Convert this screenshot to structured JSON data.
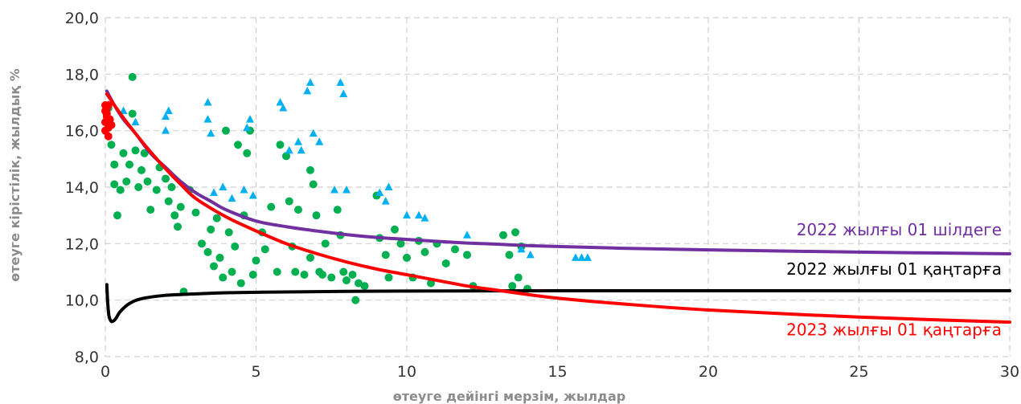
{
  "chart_data": {
    "type": "scatter",
    "title": "",
    "xlabel": "өтеуге дейінгі мерзім, жылдар",
    "ylabel": "өтеуге кірістілік, жылдық %",
    "xlim": [
      0,
      30
    ],
    "ylim": [
      8,
      20
    ],
    "x_ticks": [
      0,
      5,
      10,
      15,
      20,
      25,
      30
    ],
    "y_ticks": [
      "8,0",
      "10,0",
      "12,0",
      "14,0",
      "16,0",
      "18,0",
      "20,0"
    ],
    "grid": true,
    "curves": [
      {
        "name": "2022 жылғы 01 шілдеге",
        "color": "#7030a0",
        "label_y": 12.3,
        "points": [
          [
            0.05,
            17.4
          ],
          [
            0.3,
            16.9
          ],
          [
            0.6,
            16.4
          ],
          [
            1,
            15.9
          ],
          [
            1.5,
            15.2
          ],
          [
            2,
            14.7
          ],
          [
            2.5,
            14.2
          ],
          [
            3,
            13.8
          ],
          [
            3.5,
            13.5
          ],
          [
            4,
            13.2
          ],
          [
            5,
            12.8
          ],
          [
            6,
            12.6
          ],
          [
            7,
            12.45
          ],
          [
            8,
            12.32
          ],
          [
            9,
            12.22
          ],
          [
            10,
            12.15
          ],
          [
            11,
            12.08
          ],
          [
            12,
            12.02
          ],
          [
            13,
            11.98
          ],
          [
            14,
            11.93
          ],
          [
            15,
            11.9
          ],
          [
            17,
            11.84
          ],
          [
            20,
            11.78
          ],
          [
            25,
            11.7
          ],
          [
            30,
            11.64
          ]
        ]
      },
      {
        "name": "2022 жылғы 01 қаңтарға",
        "color": "#000000",
        "label_y": 10.9,
        "points": [
          [
            0.05,
            10.55
          ],
          [
            0.08,
            9.9
          ],
          [
            0.12,
            9.45
          ],
          [
            0.18,
            9.27
          ],
          [
            0.25,
            9.25
          ],
          [
            0.35,
            9.35
          ],
          [
            0.5,
            9.6
          ],
          [
            0.8,
            9.88
          ],
          [
            1.2,
            10.05
          ],
          [
            2,
            10.17
          ],
          [
            3,
            10.22
          ],
          [
            4,
            10.26
          ],
          [
            6,
            10.29
          ],
          [
            8,
            10.31
          ],
          [
            10,
            10.32
          ],
          [
            15,
            10.33
          ],
          [
            20,
            10.33
          ],
          [
            30,
            10.33
          ]
        ]
      },
      {
        "name": "2023 жылғы 01 қаңтарға",
        "color": "#ff0000",
        "label_y": 8.75,
        "points": [
          [
            0.05,
            17.3
          ],
          [
            0.5,
            16.6
          ],
          [
            1,
            15.9
          ],
          [
            1.5,
            15.25
          ],
          [
            2,
            14.65
          ],
          [
            2.5,
            14.1
          ],
          [
            3,
            13.6
          ],
          [
            4,
            12.95
          ],
          [
            5,
            12.45
          ],
          [
            6,
            12.0
          ],
          [
            7,
            11.65
          ],
          [
            8,
            11.35
          ],
          [
            9,
            11.1
          ],
          [
            10,
            10.9
          ],
          [
            11,
            10.7
          ],
          [
            12,
            10.5
          ],
          [
            13,
            10.35
          ],
          [
            14,
            10.2
          ],
          [
            15,
            10.07
          ],
          [
            17,
            9.88
          ],
          [
            20,
            9.65
          ],
          [
            25,
            9.4
          ],
          [
            30,
            9.22
          ]
        ]
      }
    ],
    "series": [
      {
        "name": "",
        "marker": "circle",
        "color": "#00b050",
        "points": [
          [
            0.1,
            16.8
          ],
          [
            0.2,
            15.5
          ],
          [
            0.3,
            14.8
          ],
          [
            0.3,
            14.1
          ],
          [
            0.4,
            13.0
          ],
          [
            0.5,
            13.9
          ],
          [
            0.6,
            15.2
          ],
          [
            0.7,
            14.2
          ],
          [
            0.8,
            14.8
          ],
          [
            0.9,
            17.9
          ],
          [
            0.9,
            16.6
          ],
          [
            1.0,
            15.3
          ],
          [
            1.1,
            14.0
          ],
          [
            1.2,
            14.6
          ],
          [
            1.3,
            15.2
          ],
          [
            1.4,
            14.2
          ],
          [
            1.5,
            13.2
          ],
          [
            1.7,
            13.9
          ],
          [
            1.8,
            14.7
          ],
          [
            2.0,
            14.3
          ],
          [
            2.1,
            13.5
          ],
          [
            2.2,
            14.0
          ],
          [
            2.3,
            13.0
          ],
          [
            2.4,
            12.6
          ],
          [
            2.5,
            13.3
          ],
          [
            2.6,
            10.3
          ],
          [
            2.8,
            13.9
          ],
          [
            3.0,
            13.1
          ],
          [
            3.2,
            12.0
          ],
          [
            3.4,
            11.7
          ],
          [
            3.5,
            12.5
          ],
          [
            3.6,
            11.2
          ],
          [
            3.7,
            12.9
          ],
          [
            3.8,
            11.5
          ],
          [
            3.9,
            10.8
          ],
          [
            4.0,
            16.0
          ],
          [
            4.1,
            12.4
          ],
          [
            4.2,
            11.0
          ],
          [
            4.3,
            11.9
          ],
          [
            4.4,
            15.5
          ],
          [
            4.5,
            10.6
          ],
          [
            4.6,
            13.0
          ],
          [
            4.7,
            15.2
          ],
          [
            4.8,
            16.0
          ],
          [
            4.9,
            10.9
          ],
          [
            5.0,
            11.4
          ],
          [
            5.2,
            12.4
          ],
          [
            5.3,
            11.8
          ],
          [
            5.5,
            13.3
          ],
          [
            5.7,
            11.0
          ],
          [
            5.8,
            15.5
          ],
          [
            6.0,
            15.1
          ],
          [
            6.1,
            13.5
          ],
          [
            6.2,
            11.9
          ],
          [
            6.3,
            11.0
          ],
          [
            6.4,
            13.2
          ],
          [
            6.6,
            10.9
          ],
          [
            6.8,
            14.6
          ],
          [
            6.8,
            11.5
          ],
          [
            6.9,
            14.1
          ],
          [
            7.0,
            13.0
          ],
          [
            7.1,
            11.0
          ],
          [
            7.2,
            10.9
          ],
          [
            7.3,
            12.0
          ],
          [
            7.5,
            10.8
          ],
          [
            7.7,
            13.2
          ],
          [
            7.8,
            12.3
          ],
          [
            7.9,
            11.0
          ],
          [
            8.0,
            10.7
          ],
          [
            8.2,
            10.9
          ],
          [
            8.3,
            10.0
          ],
          [
            8.4,
            10.6
          ],
          [
            8.6,
            10.5
          ],
          [
            9.0,
            13.7
          ],
          [
            9.1,
            12.2
          ],
          [
            9.3,
            11.6
          ],
          [
            9.4,
            10.8
          ],
          [
            9.6,
            12.5
          ],
          [
            9.8,
            12.0
          ],
          [
            10.0,
            11.5
          ],
          [
            10.2,
            10.8
          ],
          [
            10.4,
            12.1
          ],
          [
            10.6,
            11.7
          ],
          [
            10.8,
            10.6
          ],
          [
            11.0,
            12.0
          ],
          [
            11.3,
            11.3
          ],
          [
            11.6,
            11.8
          ],
          [
            12.0,
            11.6
          ],
          [
            12.2,
            10.5
          ],
          [
            13.2,
            12.3
          ],
          [
            13.4,
            11.6
          ],
          [
            13.5,
            10.5
          ],
          [
            13.6,
            12.4
          ],
          [
            13.7,
            10.8
          ],
          [
            13.8,
            11.9
          ],
          [
            14.0,
            10.4
          ]
        ]
      },
      {
        "name": "",
        "marker": "triangle",
        "color": "#00b0f0",
        "points": [
          [
            0.6,
            16.7
          ],
          [
            1.0,
            16.3
          ],
          [
            2.0,
            16.5
          ],
          [
            2.0,
            16.0
          ],
          [
            2.1,
            16.7
          ],
          [
            3.4,
            17.0
          ],
          [
            3.4,
            16.4
          ],
          [
            3.5,
            15.9
          ],
          [
            3.6,
            13.8
          ],
          [
            3.9,
            14.0
          ],
          [
            4.2,
            13.6
          ],
          [
            4.6,
            13.9
          ],
          [
            4.7,
            16.1
          ],
          [
            4.8,
            16.4
          ],
          [
            4.9,
            13.7
          ],
          [
            5.8,
            17.0
          ],
          [
            5.9,
            16.8
          ],
          [
            6.1,
            15.3
          ],
          [
            6.4,
            15.6
          ],
          [
            6.5,
            15.3
          ],
          [
            6.7,
            17.4
          ],
          [
            6.8,
            17.7
          ],
          [
            6.9,
            15.9
          ],
          [
            7.1,
            15.6
          ],
          [
            7.6,
            13.9
          ],
          [
            7.8,
            17.7
          ],
          [
            7.9,
            17.3
          ],
          [
            8.0,
            13.9
          ],
          [
            9.1,
            13.8
          ],
          [
            9.3,
            13.5
          ],
          [
            9.4,
            14.0
          ],
          [
            10.0,
            13.0
          ],
          [
            10.4,
            13.0
          ],
          [
            10.6,
            12.9
          ],
          [
            12.0,
            12.3
          ],
          [
            13.8,
            11.8
          ],
          [
            14.1,
            11.6
          ],
          [
            15.6,
            11.5
          ],
          [
            15.8,
            11.5
          ],
          [
            16.0,
            11.5
          ]
        ]
      },
      {
        "name": "",
        "marker": "circle",
        "color": "#ff0000",
        "points": [
          [
            0.0,
            16.9
          ],
          [
            0.0,
            16.7
          ],
          [
            0.05,
            16.5
          ],
          [
            0.0,
            16.3
          ],
          [
            0.1,
            16.1
          ],
          [
            0.05,
            16.6
          ],
          [
            0.1,
            16.9
          ],
          [
            0.15,
            16.4
          ],
          [
            0.0,
            16.0
          ],
          [
            0.1,
            15.8
          ],
          [
            0.2,
            16.2
          ],
          [
            0.05,
            16.8
          ]
        ]
      }
    ]
  }
}
